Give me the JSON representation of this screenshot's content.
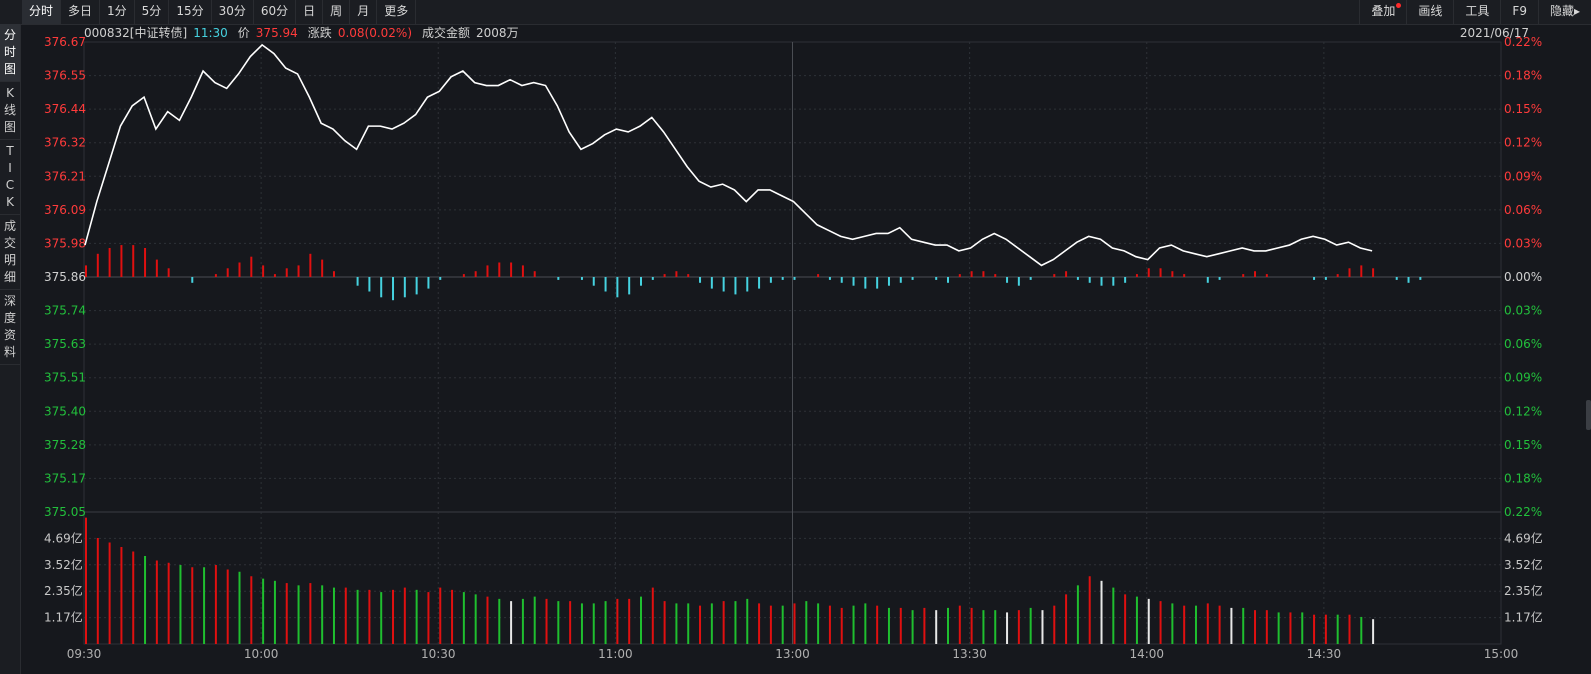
{
  "toolbar": {
    "periods": [
      "分时",
      "多日",
      "1分",
      "5分",
      "15分",
      "30分",
      "60分",
      "日",
      "周",
      "月",
      "更多"
    ],
    "active_period": 0,
    "right_buttons": [
      "叠加",
      "画线",
      "工具",
      "F9",
      "隐藏▸"
    ]
  },
  "sidebar": {
    "tabs": [
      {
        "label": "分时图",
        "chars": [
          "分",
          "时",
          "图"
        ]
      },
      {
        "label": "K线图",
        "chars": [
          "K",
          "线",
          "图"
        ]
      },
      {
        "label": "TICK",
        "chars": [
          "T",
          "I",
          "C",
          "K"
        ]
      },
      {
        "label": "成交明细",
        "chars": [
          "成",
          "交",
          "明",
          "细"
        ]
      },
      {
        "label": "深度资料",
        "chars": [
          "深",
          "度",
          "资",
          "料"
        ]
      }
    ],
    "active": 0
  },
  "header": {
    "code": "000832[中证转债]",
    "time": "11:30",
    "price_label": "价",
    "price": "375.94",
    "change_label": "涨跌",
    "change": "0.08(0.02%)",
    "amount_label": "成交金额",
    "amount": "2008万"
  },
  "date": "2021/06/17",
  "colors": {
    "up": "#ff3b3b",
    "down": "#46d2e0",
    "flat": "#d0d0d0",
    "green": "#22c03c",
    "price_line": "#ffffff",
    "grid": "#2e3137",
    "bg": "#16181d"
  },
  "chart_data": [
    {
      "type": "line",
      "name": "price",
      "y_ticks_left": [
        "376.67",
        "376.55",
        "376.44",
        "376.32",
        "376.21",
        "376.09",
        "375.98",
        "375.86",
        "375.74",
        "375.63",
        "375.51",
        "375.40",
        "375.28",
        "375.17",
        "375.05"
      ],
      "y_ticks_right": [
        "0.22%",
        "0.18%",
        "0.15%",
        "0.12%",
        "0.09%",
        "0.06%",
        "0.03%",
        "0.00%",
        "0.03%",
        "0.06%",
        "0.09%",
        "0.12%",
        "0.15%",
        "0.18%",
        "0.22%"
      ],
      "ylim": [
        375.05,
        376.67
      ],
      "pre_close": 375.86,
      "x_ticks": [
        "09:30",
        "10:00",
        "10:30",
        "11:00",
        "13:00",
        "13:30",
        "14:00",
        "14:30",
        "15:00"
      ],
      "x_minutes_total": 240,
      "minute_step": 2,
      "price": [
        375.97,
        376.12,
        376.25,
        376.38,
        376.45,
        376.48,
        376.37,
        376.43,
        376.4,
        376.48,
        376.57,
        376.53,
        376.51,
        376.56,
        376.62,
        376.66,
        376.63,
        376.58,
        376.56,
        376.48,
        376.39,
        376.37,
        376.33,
        376.3,
        376.38,
        376.38,
        376.37,
        376.39,
        376.42,
        376.48,
        376.5,
        376.55,
        376.57,
        376.53,
        376.52,
        376.52,
        376.54,
        376.52,
        376.53,
        376.52,
        376.45,
        376.36,
        376.3,
        376.32,
        376.35,
        376.37,
        376.36,
        376.38,
        376.41,
        376.36,
        376.3,
        376.24,
        376.19,
        376.17,
        376.18,
        376.16,
        376.12,
        376.16,
        376.16,
        376.14,
        376.12,
        376.08,
        376.04,
        376.02,
        376.0,
        375.99,
        376.0,
        376.01,
        376.01,
        376.03,
        375.99,
        375.98,
        375.97,
        375.97,
        375.95,
        375.96,
        375.99,
        376.01,
        375.99,
        375.96,
        375.93,
        375.9,
        375.92,
        375.95,
        375.98,
        376.0,
        375.99,
        375.96,
        375.95,
        375.93,
        375.92,
        375.96,
        375.97,
        375.95,
        375.94,
        375.93,
        375.94,
        375.95,
        375.96,
        375.95,
        375.95,
        375.96,
        375.97,
        375.99,
        376.0,
        375.99,
        375.97,
        375.98,
        375.96,
        375.95
      ]
    },
    {
      "type": "bar",
      "name": "buy-sell-strength",
      "baseline": 375.86,
      "values": [
        0.04,
        0.08,
        0.1,
        0.11,
        0.11,
        0.1,
        0.06,
        0.03,
        0.0,
        -0.02,
        0.0,
        0.01,
        0.03,
        0.05,
        0.07,
        0.04,
        0.01,
        0.03,
        0.04,
        0.08,
        0.06,
        0.02,
        0.0,
        -0.03,
        -0.05,
        -0.07,
        -0.08,
        -0.07,
        -0.06,
        -0.04,
        -0.01,
        0.0,
        0.01,
        0.02,
        0.04,
        0.05,
        0.05,
        0.04,
        0.02,
        0.0,
        -0.01,
        0.0,
        -0.01,
        -0.03,
        -0.05,
        -0.07,
        -0.06,
        -0.03,
        -0.01,
        0.01,
        0.02,
        0.01,
        -0.02,
        -0.04,
        -0.05,
        -0.06,
        -0.05,
        -0.04,
        -0.02,
        -0.01,
        -0.01,
        0.0,
        0.01,
        -0.01,
        -0.02,
        -0.03,
        -0.04,
        -0.04,
        -0.03,
        -0.02,
        -0.01,
        0.0,
        -0.01,
        -0.02,
        0.01,
        0.02,
        0.02,
        0.01,
        -0.02,
        -0.03,
        -0.01,
        0.0,
        0.01,
        0.02,
        -0.01,
        -0.02,
        -0.03,
        -0.03,
        -0.02,
        0.01,
        0.03,
        0.03,
        0.02,
        0.01,
        0.0,
        -0.02,
        -0.01,
        0.0,
        0.01,
        0.02,
        0.01,
        0.0,
        0.0,
        0.0,
        -0.01,
        -0.01,
        0.01,
        0.03,
        0.04,
        0.03,
        0.0,
        -0.01,
        -0.02,
        -0.01
      ]
    },
    {
      "type": "bar",
      "name": "volume",
      "y_ticks_left": [
        "1.17亿",
        "2.35亿",
        "3.52亿",
        "4.69亿"
      ],
      "y_ticks_right": [
        "1.17亿",
        "2.35亿",
        "3.52亿",
        "4.69亿"
      ],
      "ylim": [
        0,
        5.85
      ],
      "unit": "亿",
      "values": [
        5.6,
        4.7,
        4.5,
        4.3,
        4.1,
        3.9,
        3.7,
        3.6,
        3.5,
        3.4,
        3.4,
        3.5,
        3.3,
        3.2,
        3.0,
        2.9,
        2.8,
        2.7,
        2.6,
        2.7,
        2.6,
        2.5,
        2.5,
        2.4,
        2.4,
        2.3,
        2.4,
        2.5,
        2.4,
        2.3,
        2.5,
        2.4,
        2.3,
        2.2,
        2.1,
        2.0,
        1.9,
        2.0,
        2.1,
        2.0,
        1.9,
        1.9,
        1.8,
        1.8,
        1.9,
        2.0,
        2.0,
        2.1,
        2.5,
        1.9,
        1.8,
        1.8,
        1.7,
        1.8,
        1.9,
        1.9,
        2.0,
        1.8,
        1.7,
        1.7,
        1.8,
        1.9,
        1.8,
        1.7,
        1.6,
        1.7,
        1.8,
        1.7,
        1.6,
        1.6,
        1.5,
        1.6,
        1.5,
        1.6,
        1.7,
        1.6,
        1.5,
        1.5,
        1.4,
        1.5,
        1.6,
        1.5,
        1.7,
        2.2,
        2.6,
        3.0,
        2.8,
        2.5,
        2.2,
        2.1,
        2.0,
        1.9,
        1.8,
        1.7,
        1.7,
        1.8,
        1.7,
        1.6,
        1.6,
        1.5,
        1.5,
        1.4,
        1.4,
        1.4,
        1.3,
        1.3,
        1.3,
        1.3,
        1.2,
        1.1
      ],
      "bar_colors": [
        "u",
        "u",
        "u",
        "u",
        "u",
        "d",
        "u",
        "u",
        "d",
        "u",
        "d",
        "u",
        "u",
        "d",
        "u",
        "d",
        "d",
        "u",
        "d",
        "u",
        "d",
        "d",
        "u",
        "d",
        "u",
        "d",
        "u",
        "u",
        "d",
        "u",
        "u",
        "u",
        "d",
        "d",
        "u",
        "d",
        "w",
        "d",
        "d",
        "u",
        "d",
        "u",
        "d",
        "d",
        "d",
        "u",
        "u",
        "d",
        "u",
        "u",
        "d",
        "d",
        "u",
        "d",
        "u",
        "d",
        "d",
        "u",
        "u",
        "d",
        "u",
        "d",
        "d",
        "u",
        "u",
        "d",
        "d",
        "u",
        "d",
        "u",
        "d",
        "u",
        "w",
        "d",
        "u",
        "u",
        "d",
        "d",
        "w",
        "u",
        "d",
        "w",
        "u",
        "u",
        "d",
        "u",
        "w",
        "d",
        "u",
        "d",
        "w",
        "u",
        "d",
        "u",
        "d",
        "u",
        "u",
        "w",
        "d",
        "u",
        "u",
        "d",
        "u",
        "d",
        "u",
        "u",
        "d",
        "u",
        "d",
        "w"
      ]
    }
  ]
}
